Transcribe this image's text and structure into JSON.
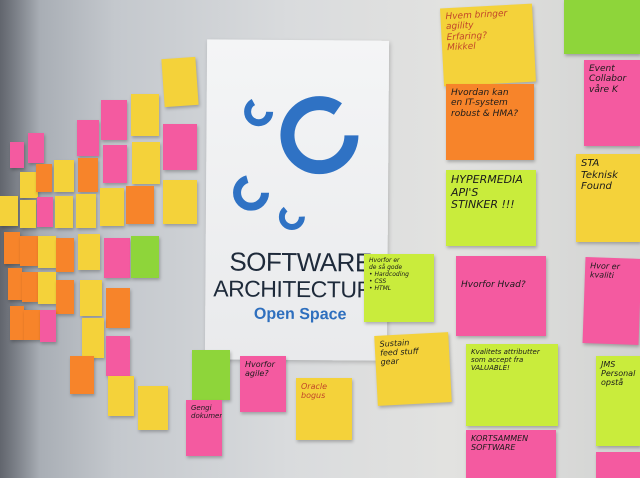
{
  "scene": {
    "description_colors": {
      "yellow": "#f4d23a",
      "pink": "#f45aa0",
      "orange": "#f7842a",
      "green": "#9bd62c",
      "lime": "#c9ec3c",
      "logo_blue": "#2f72c4",
      "title_text": "#1e2a3a"
    }
  },
  "poster": {
    "title_line1": "SOFTWARE",
    "title_line2": "ARCHITECTURE",
    "subtitle": "Open Space"
  },
  "notes": {
    "n1": "Hvem bringer agility\nErfaring?\nMikkel",
    "n2": "Hvordan kan\nen IT-system\nrobust & HMA?",
    "n3": "HYPERMEDIA\nAPI'S\nSTINKER !!!",
    "n4": "Hvorfor er\nde så gode\n• Hardcoding\n• CSS\n• HTML",
    "n5": "Hvorfor Hvad?",
    "n6": "Sustain\nfeed stuff\ngear",
    "n7": "Kvalitets attributter\nsom accept fra\nVALUABLE!",
    "n8": "STA\nTeknisk\nFound",
    "n9": "Event\nCollabor\nvåre K",
    "n10": "Hvor er\nkvaliti",
    "n11": "JMS\nPersonal\nopstå",
    "n12": "KORTSAMMEN\nSOFTWARE\n",
    "n13": "Hvorfor\nagile?",
    "n14": "Oracle\nbogus",
    "n15": "Gengi\ndokument"
  }
}
